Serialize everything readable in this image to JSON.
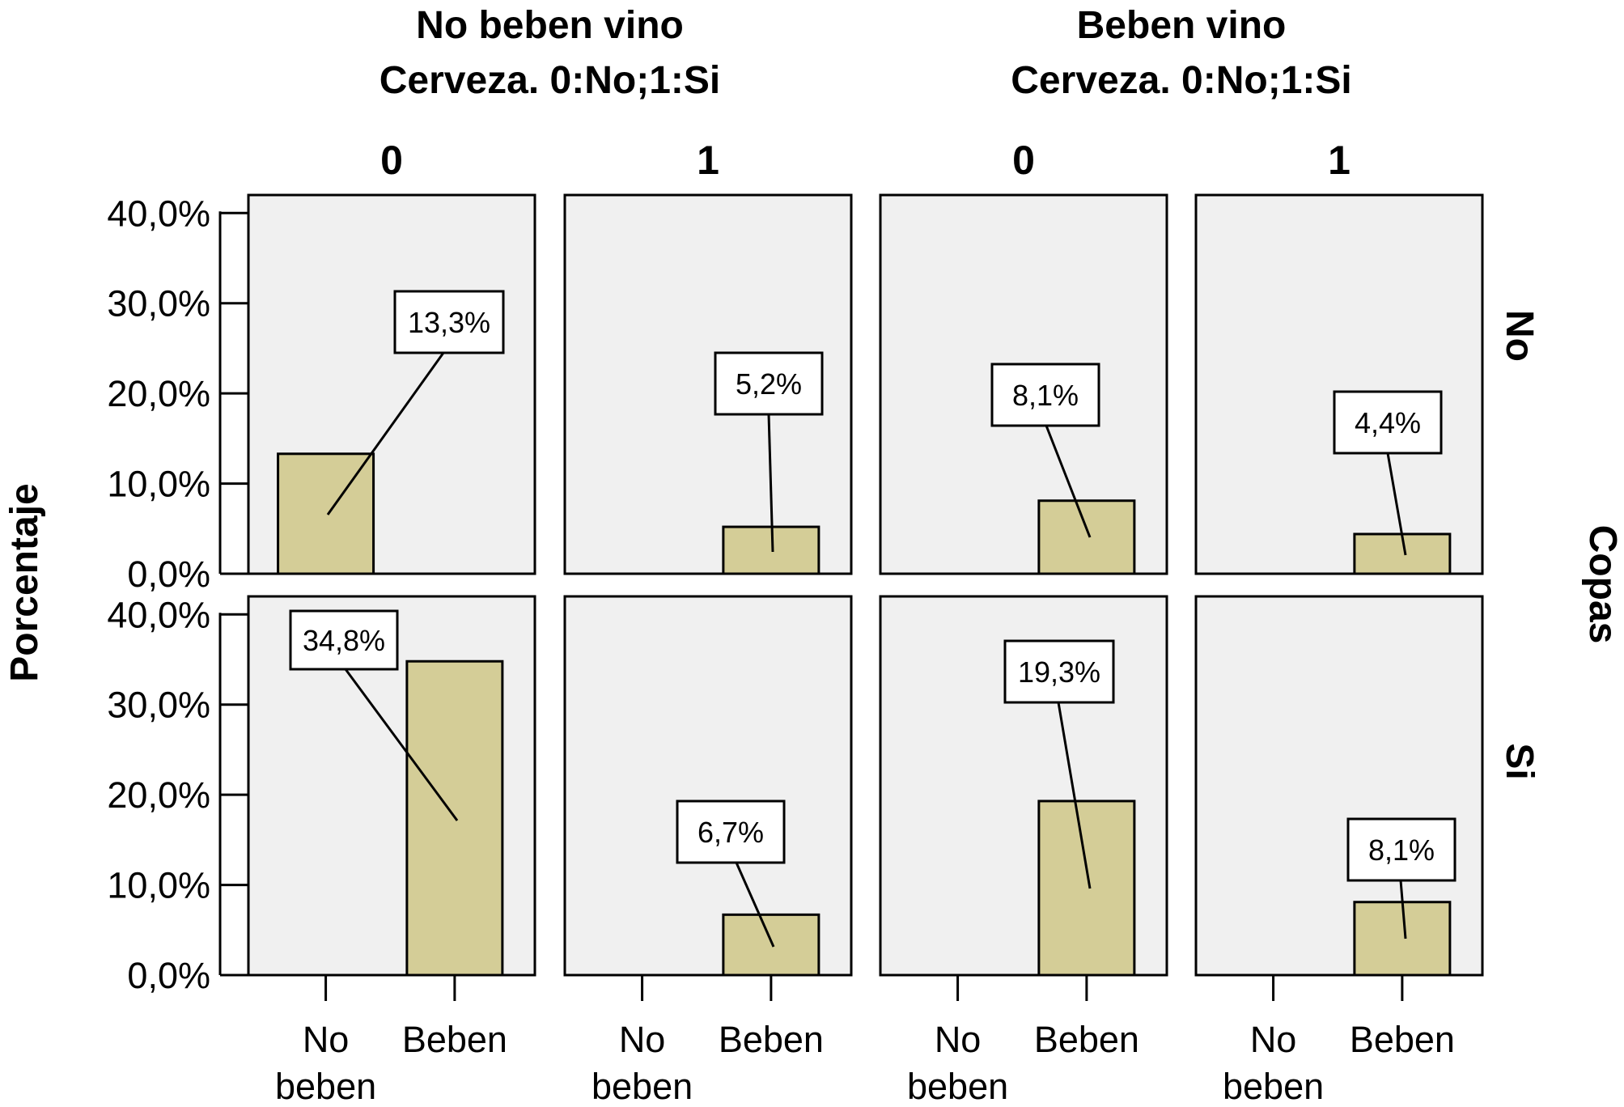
{
  "chart_data": {
    "type": "bar",
    "y_axis_title": "Porcentaje",
    "row_axis_title": "Copas",
    "y_ticks": [
      "0,0%",
      "10,0%",
      "20,0%",
      "30,0%",
      "40,0%"
    ],
    "ylim": [
      0,
      42
    ],
    "categories": [
      {
        "line1": "No",
        "line2": "beben"
      },
      {
        "line1": "Beben",
        "line2": ""
      }
    ],
    "column_groups": [
      {
        "title": "No beben vino",
        "subtitle": "Cerveza. 0:No;1:Si",
        "columns": [
          "0",
          "1"
        ]
      },
      {
        "title": "Beben vino",
        "subtitle": "Cerveza. 0:No;1:Si",
        "columns": [
          "0",
          "1"
        ]
      }
    ],
    "rows": [
      "No",
      "Si"
    ],
    "panels": [
      {
        "row": 0,
        "col": 0,
        "values": [
          13.3,
          0
        ],
        "label": "13,3%"
      },
      {
        "row": 0,
        "col": 1,
        "values": [
          0,
          5.2
        ],
        "label": "5,2%"
      },
      {
        "row": 0,
        "col": 2,
        "values": [
          0,
          8.1
        ],
        "label": "8,1%"
      },
      {
        "row": 0,
        "col": 3,
        "values": [
          0,
          4.4
        ],
        "label": "4,4%"
      },
      {
        "row": 1,
        "col": 0,
        "values": [
          0,
          34.8
        ],
        "label": "34,8%"
      },
      {
        "row": 1,
        "col": 1,
        "values": [
          0,
          6.7
        ],
        "label": "6,7%"
      },
      {
        "row": 1,
        "col": 2,
        "values": [
          0,
          19.3
        ],
        "label": "19,3%"
      },
      {
        "row": 1,
        "col": 3,
        "values": [
          0,
          8.1
        ],
        "label": "8,1%"
      }
    ],
    "grid": false,
    "colors": {
      "bar": "#d4cd97",
      "panel_bg": "#f0f0f0",
      "frame": "#000000"
    }
  }
}
